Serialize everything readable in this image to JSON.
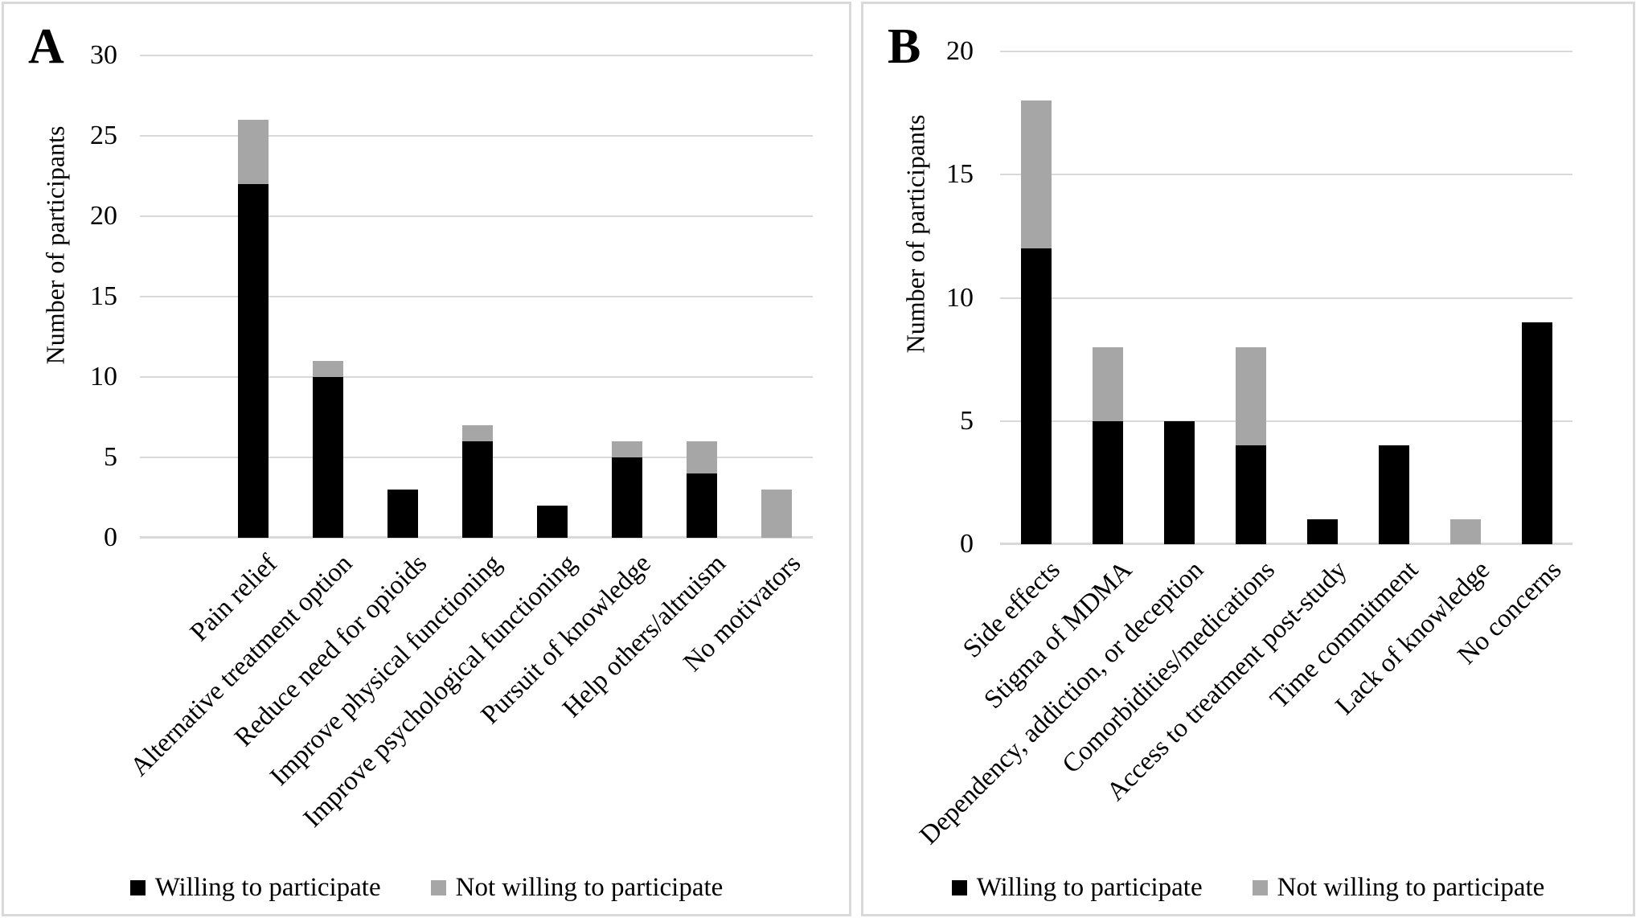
{
  "figure": {
    "description": "Two-panel stacked bar figure of participant motivators and concerns",
    "colors": {
      "willing": "#000000",
      "not_willing": "#a6a6a6",
      "gridline": "#d9d9d9",
      "panel_border": "#d9d9d9",
      "background": "#ffffff"
    }
  },
  "legend": {
    "willing_label": "Willing to participate",
    "not_willing_label": "Not willing to participate"
  },
  "chart_data": [
    {
      "panel_label": "A",
      "type": "bar",
      "stacked": true,
      "ylabel": "Number of participants",
      "ylim": [
        0,
        30
      ],
      "ytick_step": 5,
      "yticks": [
        30,
        25,
        20,
        15,
        10,
        5,
        0
      ],
      "grid": true,
      "legend_position": "bottom",
      "categories": [
        "Pain relief",
        "Alternative treatment option",
        "Reduce need for opioids",
        "Improve physical functioning",
        "Improve psychological functioning",
        "Pursuit of knowledge",
        "Help others/altruism",
        "No motivators"
      ],
      "series": [
        {
          "name": "Willing to participate",
          "color": "#000000",
          "values": [
            22,
            10,
            3,
            6,
            2,
            5,
            4,
            0
          ]
        },
        {
          "name": "Not willing to participate",
          "color": "#a6a6a6",
          "values": [
            4,
            1,
            0,
            1,
            0,
            1,
            2,
            3
          ]
        }
      ]
    },
    {
      "panel_label": "B",
      "type": "bar",
      "stacked": true,
      "ylabel": "Number of participants",
      "ylim": [
        0,
        20
      ],
      "ytick_step": 5,
      "yticks": [
        20,
        15,
        10,
        5,
        0
      ],
      "grid": true,
      "legend_position": "bottom",
      "categories": [
        "Side effects",
        "Stigma of MDMA",
        "Dependency, addiction, or deception",
        "Comorbidities/medications",
        "Access to treatment post-study",
        "Time commitment",
        "Lack of knowledge",
        "No concerns"
      ],
      "series": [
        {
          "name": "Willing to participate",
          "color": "#000000",
          "values": [
            12,
            5,
            5,
            4,
            1,
            4,
            0,
            9
          ]
        },
        {
          "name": "Not willing to participate",
          "color": "#a6a6a6",
          "values": [
            6,
            3,
            0,
            4,
            0,
            0,
            1,
            0
          ]
        }
      ]
    }
  ]
}
